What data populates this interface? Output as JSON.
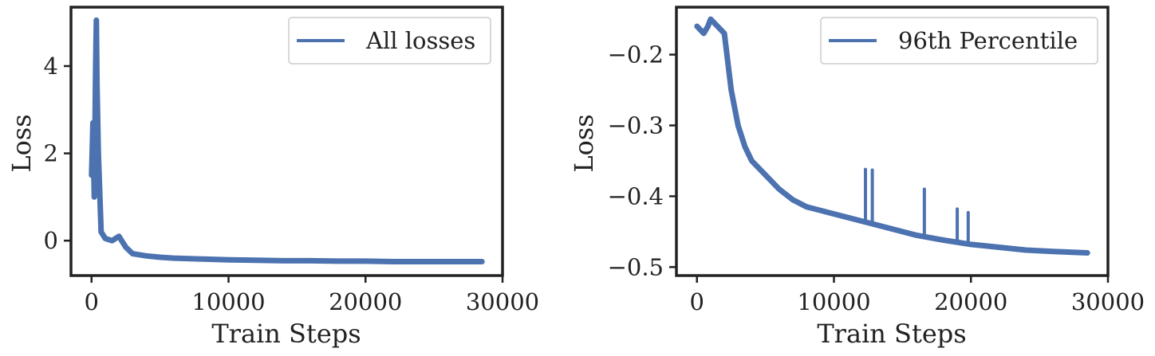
{
  "chart_data": [
    {
      "type": "line",
      "xlabel": "Train Steps",
      "ylabel": "Loss",
      "xlim": [
        -1500,
        30000
      ],
      "ylim": [
        -0.8,
        5.35
      ],
      "xticks": [
        0,
        10000,
        20000,
        30000
      ],
      "xtick_labels": [
        "0",
        "10000",
        "20000",
        "30000"
      ],
      "yticks": [
        0,
        2,
        4
      ],
      "ytick_labels": [
        "0",
        "2",
        "4"
      ],
      "grid": false,
      "legend_position": "top-right",
      "color": "#4c72b0",
      "series": [
        {
          "name": "All losses",
          "x": [
            0,
            100,
            200,
            300,
            350,
            400,
            500,
            700,
            1000,
            1500,
            2000,
            2500,
            3000,
            4000,
            5000,
            6000,
            8000,
            10000,
            12000,
            14000,
            16000,
            18000,
            20000,
            22000,
            24000,
            26000,
            28500
          ],
          "y": [
            1.5,
            2.7,
            1.0,
            4.0,
            5.05,
            3.6,
            2.0,
            0.2,
            0.05,
            0.0,
            0.1,
            -0.15,
            -0.3,
            -0.35,
            -0.38,
            -0.4,
            -0.42,
            -0.44,
            -0.45,
            -0.46,
            -0.46,
            -0.47,
            -0.47,
            -0.48,
            -0.48,
            -0.48,
            -0.48
          ]
        }
      ]
    },
    {
      "type": "line",
      "xlabel": "Train Steps",
      "ylabel": "Loss",
      "xlim": [
        -1500,
        30000
      ],
      "ylim": [
        -0.512,
        -0.133
      ],
      "xticks": [
        0,
        10000,
        20000,
        30000
      ],
      "xtick_labels": [
        "0",
        "10000",
        "20000",
        "30000"
      ],
      "yticks": [
        -0.5,
        -0.4,
        -0.3,
        -0.2
      ],
      "ytick_labels": [
        "−0.5",
        "−0.4",
        "−0.3",
        "−0.2"
      ],
      "grid": false,
      "legend_position": "top-right",
      "color": "#4c72b0",
      "series": [
        {
          "name": "96th Percentile",
          "x": [
            0,
            500,
            800,
            1000,
            1500,
            2000,
            2500,
            3000,
            3500,
            4000,
            5000,
            6000,
            7000,
            8000,
            10000,
            12000,
            14000,
            16000,
            18000,
            20000,
            22000,
            24000,
            26000,
            28500
          ],
          "y": [
            -0.16,
            -0.17,
            -0.16,
            -0.15,
            -0.16,
            -0.17,
            -0.25,
            -0.3,
            -0.33,
            -0.35,
            -0.37,
            -0.39,
            -0.405,
            -0.415,
            -0.425,
            -0.435,
            -0.445,
            -0.455,
            -0.462,
            -0.468,
            -0.472,
            -0.476,
            -0.478,
            -0.48
          ]
        }
      ],
      "spikes": [
        {
          "x": 12300,
          "y": -0.362
        },
        {
          "x": 12800,
          "y": -0.363
        },
        {
          "x": 16600,
          "y": -0.39
        },
        {
          "x": 19000,
          "y": -0.418
        },
        {
          "x": 19800,
          "y": -0.423
        }
      ]
    }
  ]
}
